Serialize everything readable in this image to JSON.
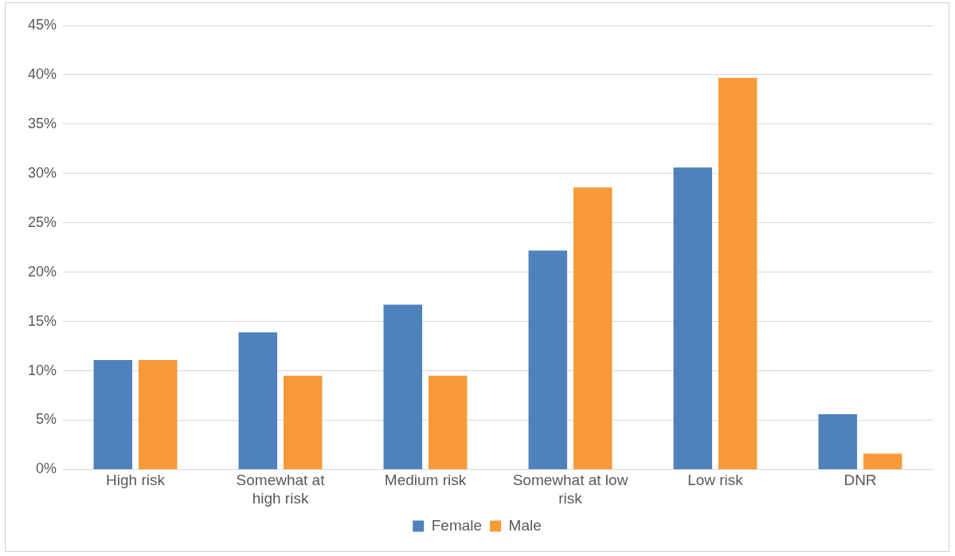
{
  "chart_data": {
    "type": "bar",
    "categories": [
      "High risk",
      "Somewhat at high risk",
      "Medium risk",
      "Somewhat at low risk",
      "Low risk",
      "DNR"
    ],
    "series": [
      {
        "name": "Female",
        "color": "#4f81bd",
        "values": [
          11.1,
          13.9,
          16.7,
          22.2,
          30.6,
          5.6
        ]
      },
      {
        "name": "Male",
        "color": "#f79a3a",
        "values": [
          11.1,
          9.5,
          9.5,
          28.6,
          39.7,
          1.6
        ]
      }
    ],
    "ylim": [
      0,
      45
    ],
    "yticks": [
      {
        "value": 0,
        "label": "0%"
      },
      {
        "value": 5,
        "label": "5%"
      },
      {
        "value": 10,
        "label": "10%"
      },
      {
        "value": 15,
        "label": "15%"
      },
      {
        "value": 20,
        "label": "20%"
      },
      {
        "value": 25,
        "label": "25%"
      },
      {
        "value": 30,
        "label": "30%"
      },
      {
        "value": 35,
        "label": "35%"
      },
      {
        "value": 40,
        "label": "40%"
      },
      {
        "value": 45,
        "label": "45%"
      }
    ],
    "grid": "y",
    "legend": "bottom"
  }
}
